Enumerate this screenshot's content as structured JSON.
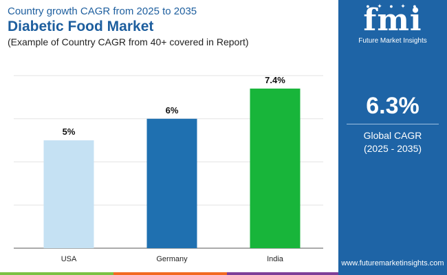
{
  "header": {
    "subtitle": "Country growth CAGR from 2025 to 2035",
    "title": "Diabetic Food Market",
    "note": "(Example of Country CAGR from 40+ covered in Report)"
  },
  "panel": {
    "logo_mark": "fmi",
    "logo_text": "Future Market Insights",
    "cagr_value": "6.3%",
    "cagr_label": "Global CAGR",
    "cagr_period": "(2025 - 2035)",
    "website": "www.futuremarketinsights.com"
  },
  "colors": {
    "panel": "#1e64a6",
    "title": "#1d5e9e",
    "bar_usa": "#c5e1f3",
    "bar_germany": "#1f70b0",
    "bar_india": "#18b53a",
    "footer": [
      "#7ac143",
      "#f26a21",
      "#7e3f98"
    ]
  },
  "chart_data": {
    "type": "bar",
    "categories": [
      "USA",
      "Germany",
      "India"
    ],
    "values": [
      5,
      6,
      7.4
    ],
    "labels": [
      "5%",
      "6%",
      "7.4%"
    ],
    "ylim": [
      0,
      8
    ],
    "grid": true,
    "bar_colors": [
      "#c5e1f3",
      "#1f70b0",
      "#18b53a"
    ]
  }
}
